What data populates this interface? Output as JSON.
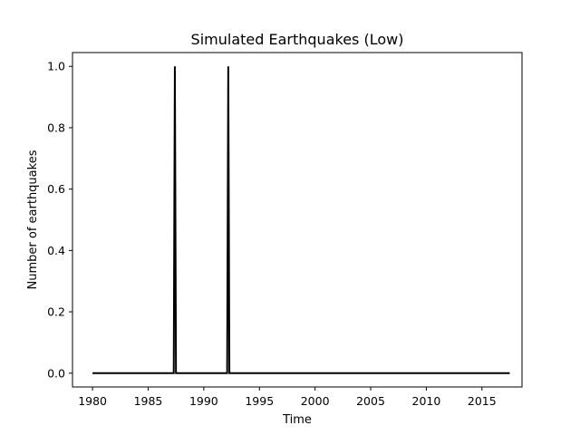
{
  "chart_data": {
    "type": "line",
    "title": "Simulated Earthquakes (Low)",
    "xlabel": "Time",
    "ylabel": "Number of earthquakes",
    "xlim": [
      1978.2,
      2018.6
    ],
    "ylim": [
      -0.045,
      1.045
    ],
    "xticks": [
      1980,
      1985,
      1990,
      1995,
      2000,
      2005,
      2010,
      2015
    ],
    "xtick_labels": [
      "1980",
      "1985",
      "1990",
      "1995",
      "2000",
      "2005",
      "2010",
      "2015"
    ],
    "yticks": [
      0.0,
      0.2,
      0.4,
      0.6,
      0.8,
      1.0
    ],
    "ytick_labels": [
      "0.0",
      "0.2",
      "0.4",
      "0.6",
      "0.8",
      "1.0"
    ],
    "grid": false,
    "series": [
      {
        "color": "#000000",
        "x": [
          1980.0,
          1987.3,
          1987.4,
          1987.5,
          1992.1,
          1992.2,
          1992.3,
          2017.5
        ],
        "y": [
          0,
          0,
          1,
          0,
          0,
          1,
          0,
          0
        ]
      }
    ]
  }
}
